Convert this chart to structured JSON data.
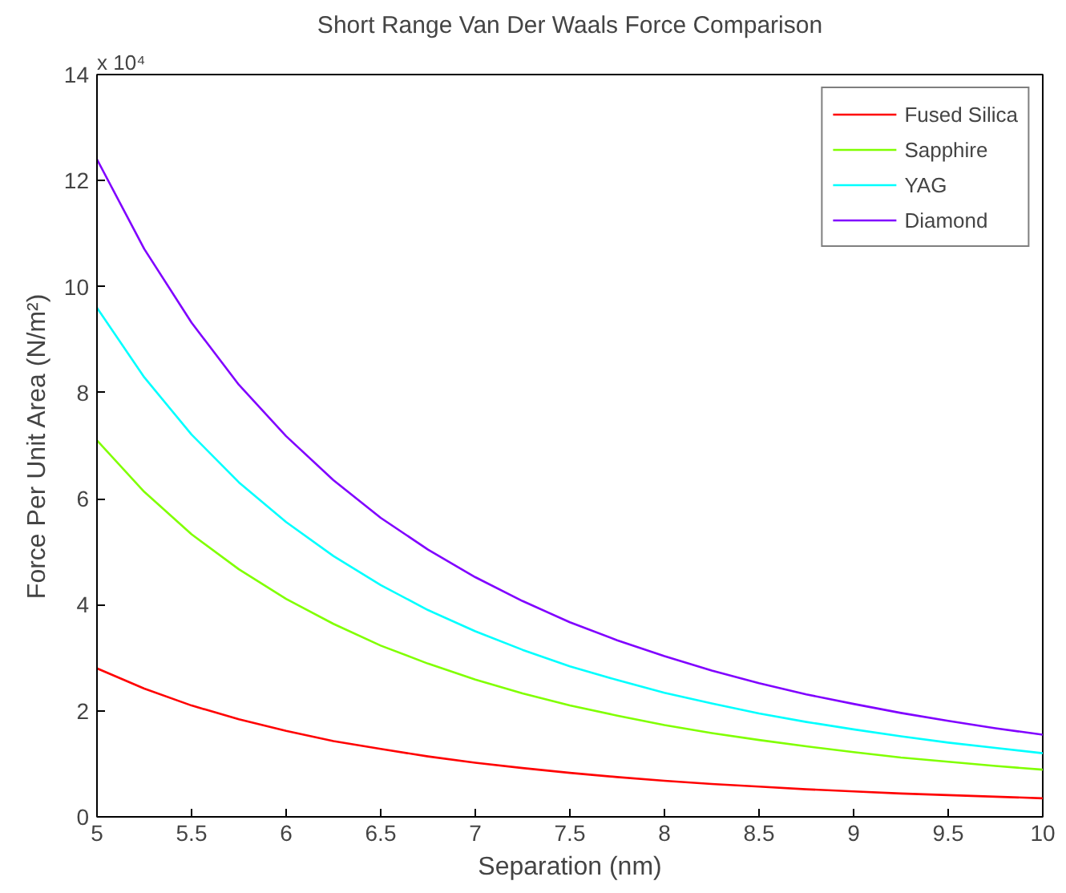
{
  "chart_data": {
    "type": "line",
    "title": "Short Range Van Der Waals Force Comparison",
    "xlabel": "Separation (nm)",
    "ylabel": "Force Per Unit Area (N/m²)",
    "annotations": [
      "x 10⁴"
    ],
    "x": [
      5,
      5.25,
      5.5,
      5.75,
      6,
      6.25,
      6.5,
      6.75,
      7,
      7.25,
      7.5,
      7.75,
      8,
      8.25,
      8.5,
      8.75,
      9,
      9.25,
      9.5,
      9.75,
      10
    ],
    "series": [
      {
        "name": "Fused Silica",
        "color": "#ff0000",
        "values": [
          2.8,
          2.42,
          2.1,
          1.84,
          1.62,
          1.43,
          1.28,
          1.14,
          1.02,
          0.92,
          0.83,
          0.75,
          0.68,
          0.62,
          0.57,
          0.52,
          0.48,
          0.44,
          0.41,
          0.38,
          0.35
        ]
      },
      {
        "name": "Sapphire",
        "color": "#80ff00",
        "values": [
          7.1,
          6.13,
          5.33,
          4.67,
          4.11,
          3.64,
          3.23,
          2.89,
          2.59,
          2.33,
          2.1,
          1.91,
          1.73,
          1.58,
          1.45,
          1.33,
          1.22,
          1.12,
          1.04,
          0.96,
          0.89
        ]
      },
      {
        "name": "YAG",
        "color": "#00ffff",
        "values": [
          9.6,
          8.29,
          7.21,
          6.31,
          5.56,
          4.92,
          4.37,
          3.9,
          3.5,
          3.15,
          2.84,
          2.58,
          2.34,
          2.14,
          1.95,
          1.79,
          1.65,
          1.52,
          1.4,
          1.3,
          1.2
        ]
      },
      {
        "name": "Diamond",
        "color": "#8000ff",
        "values": [
          12.4,
          10.71,
          9.32,
          8.15,
          7.18,
          6.35,
          5.64,
          5.04,
          4.52,
          4.07,
          3.67,
          3.33,
          3.03,
          2.76,
          2.52,
          2.31,
          2.13,
          1.96,
          1.81,
          1.67,
          1.55
        ]
      }
    ],
    "xlim": [
      5,
      10
    ],
    "xticks": [
      5,
      5.5,
      6,
      6.5,
      7,
      7.5,
      8,
      8.5,
      9,
      9.5,
      10
    ],
    "ylim": [
      0,
      14
    ],
    "yticks": [
      0,
      2,
      4,
      6,
      8,
      10,
      12,
      14
    ],
    "grid": false,
    "legend": "top right",
    "line_style": "solid",
    "marker": "none"
  }
}
